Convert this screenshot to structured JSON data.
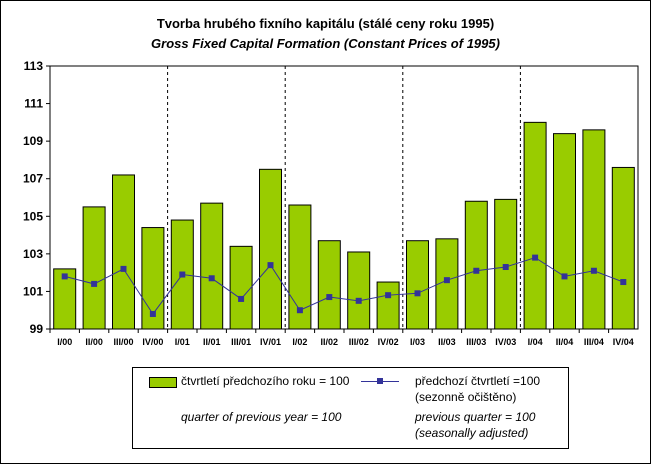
{
  "chart_data": {
    "type": "bar",
    "title": "Tvorba hrubého fixního kapitálu (stálé ceny roku 1995)",
    "subtitle": "Gross Fixed Capital Formation (Constant Prices of 1995)",
    "categories": [
      "I/00",
      "II/00",
      "III/00",
      "IV/00",
      "I/01",
      "II/01",
      "III/01",
      "IV/01",
      "I/02",
      "II/02",
      "III/02",
      "IV/02",
      "I/03",
      "II/03",
      "III/03",
      "IV/03",
      "I/04",
      "II/04",
      "III/04",
      "IV/04"
    ],
    "yticks": [
      "99",
      "101",
      "103",
      "105",
      "107",
      "109",
      "111",
      "113"
    ],
    "ylim": [
      99,
      113
    ],
    "grid": "vertical dashed lines after each fourth quarter",
    "series": [
      {
        "name": "čtvrtletí předchozího roku = 100",
        "name_en": "quarter of previous year = 100",
        "type": "bar",
        "color": "#99CC00",
        "values": [
          102.2,
          105.5,
          107.2,
          104.4,
          104.8,
          105.7,
          103.4,
          107.5,
          105.6,
          103.7,
          103.1,
          101.5,
          103.7,
          103.8,
          105.8,
          105.9,
          110.0,
          109.4,
          109.6,
          107.6
        ]
      },
      {
        "name": "předchozí čtvrtletí =100",
        "name_line2": "(sezonně očištěno)",
        "name_en": "previous quarter = 100",
        "name_en_line2": "(seasonally adjusted)",
        "type": "line",
        "color": "#333399",
        "values": [
          101.8,
          101.4,
          102.2,
          99.8,
          101.9,
          101.7,
          100.6,
          102.4,
          100.0,
          100.7,
          100.5,
          100.8,
          100.9,
          101.6,
          102.1,
          102.3,
          102.8,
          101.8,
          102.1,
          101.5
        ]
      }
    ]
  }
}
